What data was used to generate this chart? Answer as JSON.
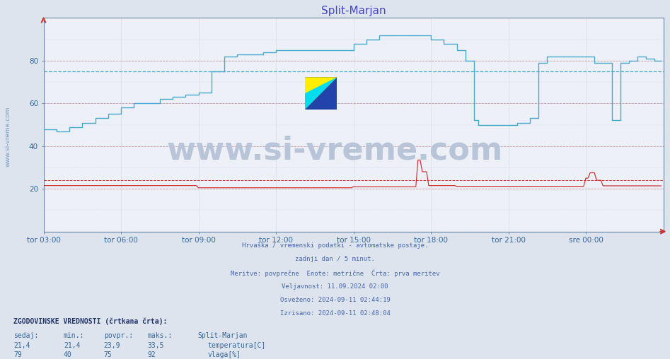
{
  "title": "Split-Marjan",
  "title_color": "#4444cc",
  "bg_color": "#dde4ee",
  "plot_bg_color": "#eef0f8",
  "grid_color_h": "#cc9999",
  "grid_color_v": "#aabbcc",
  "xlabel_ticks": [
    "tor 03:00",
    "tor 06:00",
    "tor 09:00",
    "tor 12:00",
    "tor 15:00",
    "tor 18:00",
    "tor 21:00",
    "sre 00:00"
  ],
  "yticks": [
    20,
    40,
    60,
    80
  ],
  "ylim": [
    0,
    100
  ],
  "xlim": [
    0,
    288
  ],
  "n": 288,
  "footnote_lines": [
    "Hrvaška / vremenski podatki - avtomatske postaje.",
    "zadnji dan / 5 minut.",
    "Meritve: povprečne  Enote: metrične  Črta: prva meritev",
    "Veljavnost: 11.09.2024 02:00",
    "Osveženo: 2024-09-11 02:44:19",
    "Izrisano: 2024-09-11 02:48:04"
  ],
  "footnote_color": "#4466aa",
  "legend_header": "ZGODOVINSKE VREDNOSTI (črtkana črta):",
  "col_headers": [
    "sedaj:",
    "min.:",
    "povpr.:",
    "maks.:",
    "Split-Marjan"
  ],
  "temp_vals": [
    "21,4",
    "21,4",
    "23,9",
    "33,5"
  ],
  "temp_label": "temperatura[C]",
  "vlaga_vals": [
    "79",
    "40",
    "75",
    "92"
  ],
  "vlaga_label": "vlaga[%]",
  "legend_text_color": "#336699",
  "legend_header_color": "#223366",
  "watermark_large": "www.si-vreme.com",
  "watermark_side": "www.si-vreme.com",
  "watermark_color_large": "#b8c4d8",
  "watermark_color_side": "#7b9bbf",
  "temp_color": "#cc2222",
  "humid_color": "#44aacc",
  "humid_avg": 75.0,
  "temp_avg": 23.9
}
